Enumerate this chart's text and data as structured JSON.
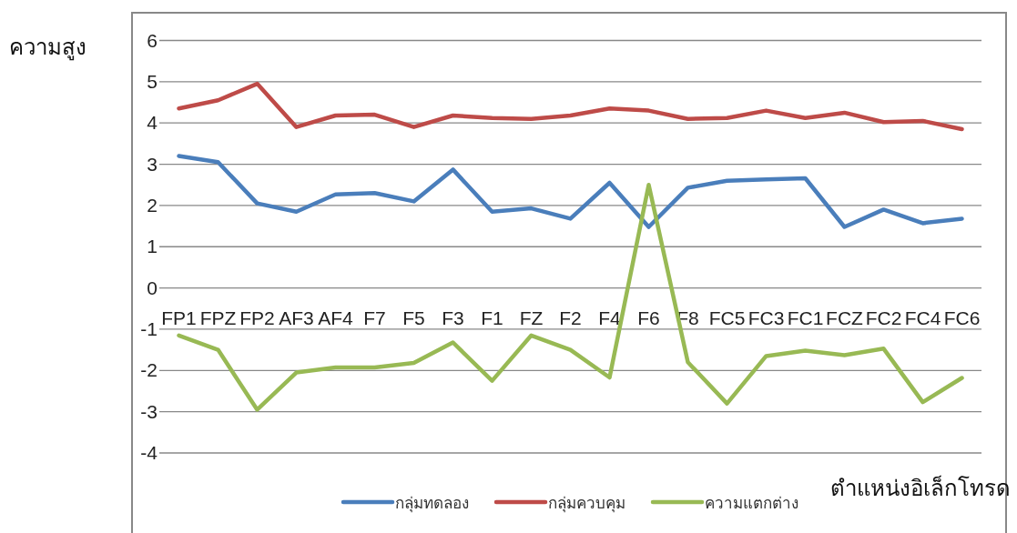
{
  "chart_data": {
    "type": "line",
    "ylabel": "ความสูง",
    "xlabel": "ตำแหน่งอิเล็กโทรด",
    "categories": [
      "FP1",
      "FPZ",
      "FP2",
      "AF3",
      "AF4",
      "F7",
      "F5",
      "F3",
      "F1",
      "FZ",
      "F2",
      "F4",
      "F6",
      "F8",
      "FC5",
      "FC3",
      "FC1",
      "FCZ",
      "FC2",
      "FC4",
      "FC6"
    ],
    "series": [
      {
        "name": "กลุ่มทดลอง",
        "color": "#4a7ebb",
        "values": [
          3.2,
          3.05,
          2.05,
          1.85,
          2.27,
          2.3,
          2.1,
          2.87,
          1.85,
          1.93,
          1.68,
          2.55,
          1.48,
          2.43,
          2.6,
          2.63,
          2.66,
          1.48,
          1.9,
          1.57,
          1.68
        ]
      },
      {
        "name": "กลุ่มควบคุม",
        "color": "#be4b48",
        "values": [
          4.35,
          4.55,
          4.95,
          3.9,
          4.18,
          4.2,
          3.9,
          4.18,
          4.12,
          4.1,
          4.18,
          4.35,
          4.3,
          4.1,
          4.12,
          4.3,
          4.12,
          4.25,
          4.02,
          4.05,
          3.85
        ]
      },
      {
        "name": "ความแตกต่าง",
        "color": "#98b954",
        "values": [
          -1.15,
          -1.5,
          -2.95,
          -2.05,
          -1.93,
          -1.93,
          -1.82,
          -1.32,
          -2.25,
          -1.15,
          -1.5,
          -2.17,
          2.5,
          -1.8,
          -2.8,
          -1.65,
          -1.52,
          -1.63,
          -1.47,
          -2.77,
          -2.18
        ]
      }
    ],
    "ylim": [
      -4,
      6
    ],
    "yticks": [
      -4,
      -3,
      -2,
      -1,
      0,
      1,
      2,
      3,
      4,
      5,
      6
    ],
    "grid": "y",
    "legend": "bottom",
    "marker": "none",
    "line_style": "solid"
  }
}
